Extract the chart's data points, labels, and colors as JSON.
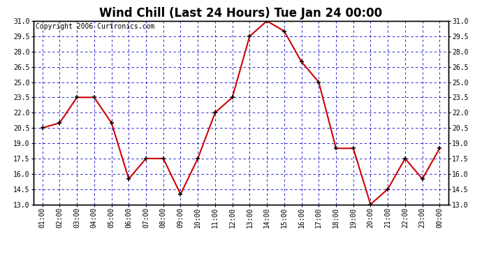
{
  "title": "Wind Chill (Last 24 Hours) Tue Jan 24 00:00",
  "copyright": "Copyright 2006 Curtronics.com",
  "x_labels": [
    "01:00",
    "02:00",
    "03:00",
    "04:00",
    "05:00",
    "06:00",
    "07:00",
    "08:00",
    "09:00",
    "10:00",
    "11:00",
    "12:00",
    "13:00",
    "14:00",
    "15:00",
    "16:00",
    "17:00",
    "18:00",
    "19:00",
    "20:00",
    "21:00",
    "22:00",
    "23:00",
    "00:00"
  ],
  "y_values": [
    20.5,
    21.0,
    23.5,
    23.5,
    21.0,
    15.5,
    17.5,
    17.5,
    14.0,
    17.5,
    22.0,
    23.5,
    29.5,
    31.0,
    30.0,
    27.0,
    25.0,
    18.5,
    18.5,
    13.0,
    14.5,
    17.5,
    15.5,
    18.5
  ],
  "ylim_min": 13.0,
  "ylim_max": 31.0,
  "yticks": [
    13.0,
    14.5,
    16.0,
    17.5,
    19.0,
    20.5,
    22.0,
    23.5,
    25.0,
    26.5,
    28.0,
    29.5,
    31.0
  ],
  "line_color": "#cc0000",
  "marker_color": "#000000",
  "fig_bg_color": "#ffffff",
  "plot_bg_color": "#ffffff",
  "grid_color": "#0000cc",
  "title_color": "#000000",
  "tick_label_color": "#000000",
  "copyright_color": "#000000",
  "title_fontsize": 12,
  "tick_fontsize": 7,
  "copyright_fontsize": 7
}
